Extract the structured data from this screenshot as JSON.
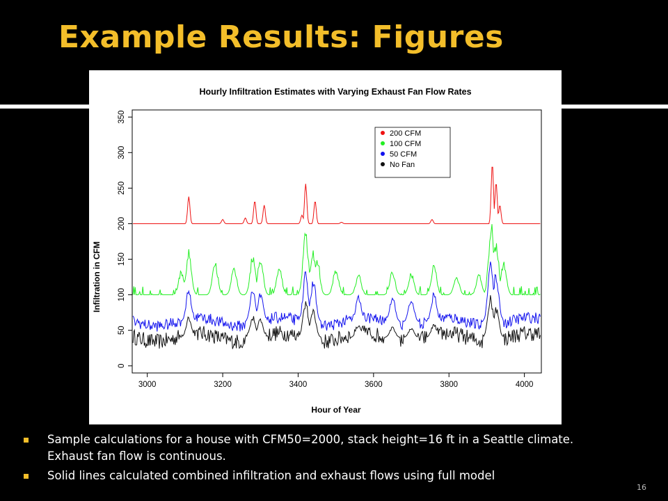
{
  "slide": {
    "title": "Example Results: Figures",
    "bullets": [
      "Sample calculations for a house with CFM50=2000, stack height=16 ft in a Seattle climate.  Exhaust fan flow is continuous.",
      "Solid lines calculated combined infiltration and exhaust flows using full model"
    ],
    "slide_number": "16",
    "colors": {
      "title": "#f3be2a",
      "background": "#000000",
      "bullet": "#f3be2a"
    }
  },
  "chart_data": {
    "type": "line",
    "title": "Hourly Infiltration Estimates with Varying Exhaust Fan Flow Rates",
    "xlabel": "Hour of Year",
    "ylabel": "Infiltration in CFM",
    "xlim": [
      2960,
      4045
    ],
    "ylim": [
      -10,
      360
    ],
    "xticks": [
      "3000",
      "3200",
      "3400",
      "3600",
      "3800",
      "4000"
    ],
    "yticks": [
      "0",
      "50",
      "100",
      "150",
      "200",
      "250",
      "300",
      "350"
    ],
    "legend_position": "top-right",
    "grid": false,
    "series": [
      {
        "name": "200 CFM",
        "color": "#ee1111",
        "baseline": 200,
        "x": [
          3110,
          3200,
          3260,
          3285,
          3310,
          3410,
          3420,
          3445,
          3515,
          3755,
          3915,
          3925,
          3935
        ],
        "peak": [
          238,
          206,
          208,
          232,
          226,
          212,
          256,
          232,
          202,
          206,
          284,
          258,
          226
        ]
      },
      {
        "name": "100 CFM",
        "color": "#22ee22",
        "baseline": 100,
        "x": [
          3090,
          3110,
          3180,
          3230,
          3280,
          3300,
          3350,
          3420,
          3440,
          3450,
          3500,
          3560,
          3650,
          3700,
          3760,
          3820,
          3880,
          3912,
          3925,
          3945
        ],
        "peak": [
          135,
          165,
          148,
          140,
          160,
          155,
          142,
          195,
          165,
          158,
          140,
          130,
          135,
          132,
          145,
          128,
          130,
          205,
          180,
          150
        ]
      },
      {
        "name": "50 CFM",
        "color": "#1111ee",
        "baseline": 62,
        "x": [
          3110,
          3280,
          3300,
          3420,
          3440,
          3560,
          3650,
          3700,
          3760,
          3910,
          3925
        ],
        "peak": [
          110,
          112,
          108,
          135,
          125,
          100,
          100,
          98,
          105,
          150,
          135
        ]
      },
      {
        "name": "No Fan",
        "color": "#111111",
        "baseline": 40,
        "x": [
          3110,
          3280,
          3300,
          3420,
          3440,
          3560,
          3650,
          3700,
          3760,
          3910,
          3925
        ],
        "peak": [
          70,
          72,
          68,
          95,
          80,
          58,
          55,
          54,
          60,
          100,
          85
        ]
      }
    ]
  }
}
